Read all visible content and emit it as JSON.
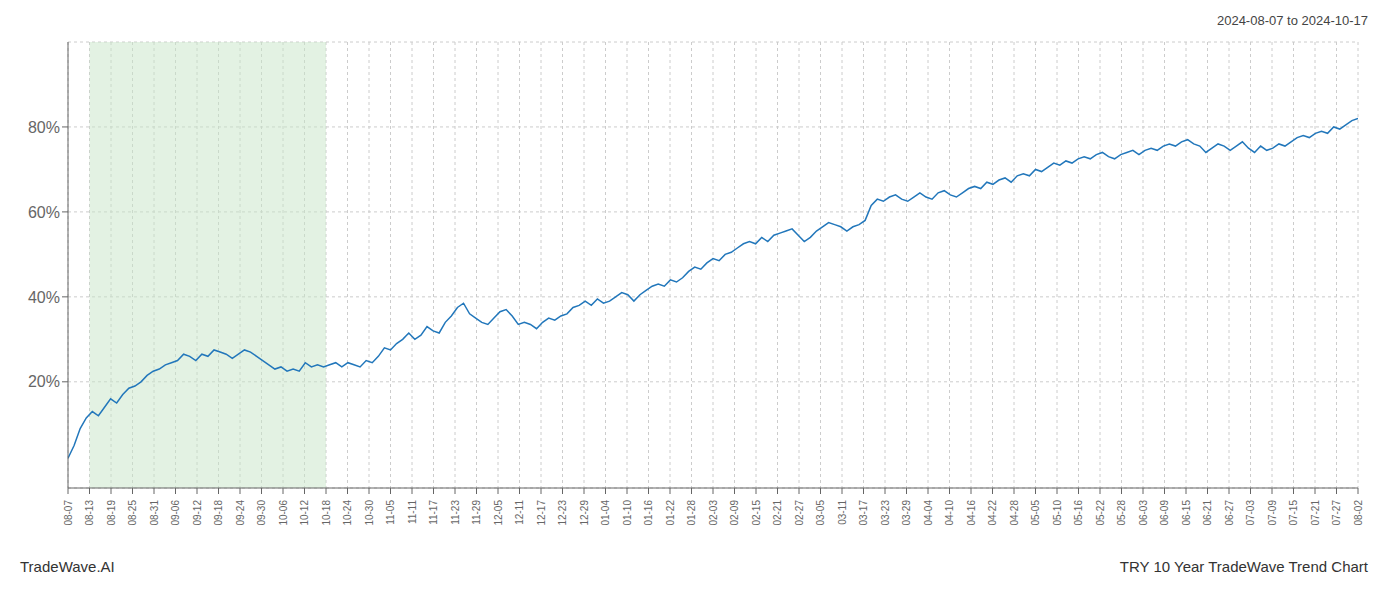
{
  "chart_data": {
    "type": "line",
    "title": "TRY 10 Year TradeWave Trend Chart",
    "subtitle": "2024-08-07 to 2024-10-17",
    "annotations": [
      "TradeWave.AI"
    ],
    "color": "#2277bb",
    "grid": true,
    "line_style": "solid",
    "x": [
      0,
      0.283,
      0.566,
      0.8491,
      1.1321,
      1.4151,
      1.6981,
      1.9811,
      2.2642,
      2.5472,
      2.8302,
      3.1132,
      3.3962,
      3.6792,
      3.9623,
      4.2453,
      4.5283,
      4.8113,
      5.0943,
      5.3774,
      5.6604,
      5.9434,
      6.2264,
      6.5094,
      6.7925,
      7.0755,
      7.3585,
      7.6415,
      7.9245,
      8.2075,
      8.4906,
      8.7736,
      9.0566,
      9.3396,
      9.6226,
      9.9057,
      10.1887,
      10.4717,
      10.7547,
      11.0377,
      11.3208,
      11.6038,
      11.8868,
      12.1698,
      12.4528,
      12.7358,
      13.0189,
      13.3019,
      13.5849,
      13.8679,
      14.1509,
      14.434,
      14.717,
      15,
      15.283,
      15.566,
      15.8491,
      16.1321,
      16.4151,
      16.6981,
      16.9811,
      17.2642,
      17.5472,
      17.8302,
      18.1132,
      18.3962,
      18.6792,
      18.9623,
      19.2453,
      19.5283,
      19.8113,
      20.0943,
      20.3774,
      20.6604,
      20.9434,
      21.2264,
      21.5094,
      21.7925,
      22.0755,
      22.3585,
      22.6415,
      22.9245,
      23.2075,
      23.4906,
      23.7736,
      24.0566,
      24.3396,
      24.6226,
      24.9057,
      25.1887,
      25.4717,
      25.7547,
      26.0377,
      26.3208,
      26.6038,
      26.8868,
      27.1698,
      27.4528,
      27.7358,
      28.0189,
      28.3019,
      28.5849,
      28.8679,
      29.1509,
      29.434,
      29.717,
      30,
      30.283,
      30.566,
      30.8491,
      31.1321,
      31.4151,
      31.6981,
      31.9811,
      32.2642,
      32.5472,
      32.8302,
      33.1132,
      33.3962,
      33.6792,
      33.9623,
      34.2453,
      34.5283,
      34.8113,
      35.0943,
      35.3774,
      35.6604,
      35.9434,
      36.2264,
      36.5094,
      36.7925,
      37.0755,
      37.3585,
      37.6415,
      37.9245,
      38.2075,
      38.4906,
      38.7736,
      39.0566,
      39.3396,
      39.6226,
      39.9057,
      40.1887,
      40.4717,
      40.7547,
      41.0377,
      41.3208,
      41.6038,
      41.8868,
      42.1698,
      42.4528,
      42.7358,
      43.0189,
      43.3019,
      43.5849,
      43.8679,
      44.1509,
      44.434,
      44.717,
      45,
      45.283,
      45.566,
      45.8491,
      46.1321,
      46.4151,
      46.6981,
      46.9811,
      47.2642,
      47.5472,
      47.8302,
      48.1132,
      48.3962,
      48.6792,
      48.9623,
      49.2453,
      49.5283,
      49.8113,
      50.0943,
      50.3774,
      50.6604,
      50.9434,
      51.2264,
      51.5094,
      51.7925,
      52.0755,
      52.3585,
      52.6415,
      52.9245,
      53.2075,
      53.4906,
      53.7736,
      54.0566,
      54.3396,
      54.6226,
      54.9057,
      55.1887,
      55.4717,
      55.7547,
      56.0377,
      56.3208,
      56.6038,
      56.8868,
      57.1698,
      57.4528,
      57.7358,
      58.0189,
      58.3019,
      58.5849,
      58.8679,
      59.1509,
      59.434,
      59.717,
      60
    ],
    "values": [
      2.0,
      5.0,
      9.0,
      11.5,
      13.0,
      12.0,
      14.0,
      16.0,
      15.0,
      17.0,
      18.5,
      19.0,
      20.0,
      21.5,
      22.5,
      23.0,
      24.0,
      24.5,
      25.0,
      26.5,
      26.0,
      25.0,
      26.5,
      26.0,
      27.5,
      27.0,
      26.5,
      25.5,
      26.5,
      27.5,
      27.0,
      26.0,
      25.0,
      24.0,
      23.0,
      23.5,
      22.5,
      23.0,
      22.5,
      24.5,
      23.5,
      24.0,
      23.5,
      24.0,
      24.5,
      23.5,
      24.5,
      24.0,
      23.5,
      25.0,
      24.5,
      26.0,
      28.0,
      27.5,
      29.0,
      30.0,
      31.5,
      30.0,
      31.0,
      33.0,
      32.0,
      31.5,
      34.0,
      35.5,
      37.5,
      38.5,
      36.0,
      35.0,
      34.0,
      33.5,
      35.0,
      36.5,
      37.0,
      35.5,
      33.5,
      34.0,
      33.5,
      32.5,
      34.0,
      35.0,
      34.5,
      35.5,
      36.0,
      37.5,
      38.0,
      39.0,
      38.0,
      39.5,
      38.5,
      39.0,
      40.0,
      41.0,
      40.5,
      39.0,
      40.5,
      41.5,
      42.5,
      43.0,
      42.5,
      44.0,
      43.5,
      44.5,
      46.0,
      47.0,
      46.5,
      48.0,
      49.0,
      48.5,
      50.0,
      50.5,
      51.5,
      52.5,
      53.0,
      52.5,
      54.0,
      53.0,
      54.5,
      55.0,
      55.5,
      56.0,
      54.5,
      53.0,
      54.0,
      55.5,
      56.5,
      57.5,
      57.0,
      56.5,
      55.5,
      56.5,
      57.0,
      58.0,
      61.5,
      63.0,
      62.5,
      63.5,
      64.0,
      63.0,
      62.5,
      63.5,
      64.5,
      63.5,
      63.0,
      64.5,
      65.0,
      64.0,
      63.5,
      64.5,
      65.5,
      66.0,
      65.5,
      67.0,
      66.5,
      67.5,
      68.0,
      67.0,
      68.5,
      69.0,
      68.5,
      70.0,
      69.5,
      70.5,
      71.5,
      71.0,
      72.0,
      71.5,
      72.5,
      73.0,
      72.5,
      73.5,
      74.0,
      73.0,
      72.5,
      73.5,
      74.0,
      74.5,
      73.5,
      74.5,
      75.0,
      74.5,
      75.5,
      76.0,
      75.5,
      76.5,
      77.0,
      76.0,
      75.5,
      74.0,
      75.0,
      76.0,
      75.5,
      74.5,
      75.5,
      76.5,
      75.0,
      74.0,
      75.5,
      74.5,
      75.0,
      76.0,
      75.5,
      76.5,
      77.5,
      78.0,
      77.5,
      78.5,
      79.0,
      78.5,
      80.0,
      79.5,
      80.5,
      81.5,
      82.0
    ],
    "xlim": [
      0,
      60
    ],
    "xticks": [
      {
        "value": 0,
        "label": "08-07"
      },
      {
        "value": 1,
        "label": "08-13"
      },
      {
        "value": 2,
        "label": "08-19"
      },
      {
        "value": 3,
        "label": "08-25"
      },
      {
        "value": 4,
        "label": "08-31"
      },
      {
        "value": 5,
        "label": "09-06"
      },
      {
        "value": 6,
        "label": "09-12"
      },
      {
        "value": 7,
        "label": "09-18"
      },
      {
        "value": 8,
        "label": "09-24"
      },
      {
        "value": 9,
        "label": "09-30"
      },
      {
        "value": 10,
        "label": "10-06"
      },
      {
        "value": 11,
        "label": "10-12"
      },
      {
        "value": 12,
        "label": "10-18"
      },
      {
        "value": 13,
        "label": "10-24"
      },
      {
        "value": 14,
        "label": "10-30"
      },
      {
        "value": 15,
        "label": "11-05"
      },
      {
        "value": 16,
        "label": "11-11"
      },
      {
        "value": 17,
        "label": "11-17"
      },
      {
        "value": 18,
        "label": "11-23"
      },
      {
        "value": 19,
        "label": "11-29"
      },
      {
        "value": 20,
        "label": "12-05"
      },
      {
        "value": 21,
        "label": "12-11"
      },
      {
        "value": 22,
        "label": "12-17"
      },
      {
        "value": 23,
        "label": "12-23"
      },
      {
        "value": 24,
        "label": "12-29"
      },
      {
        "value": 25,
        "label": "01-04"
      },
      {
        "value": 26,
        "label": "01-10"
      },
      {
        "value": 27,
        "label": "01-16"
      },
      {
        "value": 28,
        "label": "01-22"
      },
      {
        "value": 29,
        "label": "01-28"
      },
      {
        "value": 30,
        "label": "02-03"
      },
      {
        "value": 31,
        "label": "02-09"
      },
      {
        "value": 32,
        "label": "02-15"
      },
      {
        "value": 33,
        "label": "02-21"
      },
      {
        "value": 34,
        "label": "02-27"
      },
      {
        "value": 35,
        "label": "03-05"
      },
      {
        "value": 36,
        "label": "03-11"
      },
      {
        "value": 37,
        "label": "03-17"
      },
      {
        "value": 38,
        "label": "03-23"
      },
      {
        "value": 39,
        "label": "03-29"
      },
      {
        "value": 40,
        "label": "04-04"
      },
      {
        "value": 41,
        "label": "04-10"
      },
      {
        "value": 42,
        "label": "04-16"
      },
      {
        "value": 43,
        "label": "04-22"
      },
      {
        "value": 44,
        "label": "04-28"
      },
      {
        "value": 45,
        "label": "05-05"
      },
      {
        "value": 46,
        "label": "05-10"
      },
      {
        "value": 47,
        "label": "05-16"
      },
      {
        "value": 48,
        "label": "05-22"
      },
      {
        "value": 49,
        "label": "05-28"
      },
      {
        "value": 50,
        "label": "06-03"
      },
      {
        "value": 51,
        "label": "06-09"
      },
      {
        "value": 52,
        "label": "06-15"
      },
      {
        "value": 53,
        "label": "06-21"
      },
      {
        "value": 54,
        "label": "06-27"
      },
      {
        "value": 55,
        "label": "07-03"
      },
      {
        "value": 56,
        "label": "07-09"
      },
      {
        "value": 57,
        "label": "07-15"
      },
      {
        "value": 58,
        "label": "07-21"
      },
      {
        "value": 59,
        "label": "07-27"
      },
      {
        "value": 60,
        "label": "08-02"
      }
    ],
    "ylim": [
      -5,
      100
    ],
    "yticks": [
      {
        "value": 20,
        "label": "20%"
      },
      {
        "value": 40,
        "label": "40%"
      },
      {
        "value": 60,
        "label": "60%"
      },
      {
        "value": 80,
        "label": "80%"
      }
    ],
    "shaded_region": {
      "x": [
        1,
        12
      ],
      "color": "#c8e6c8"
    }
  }
}
